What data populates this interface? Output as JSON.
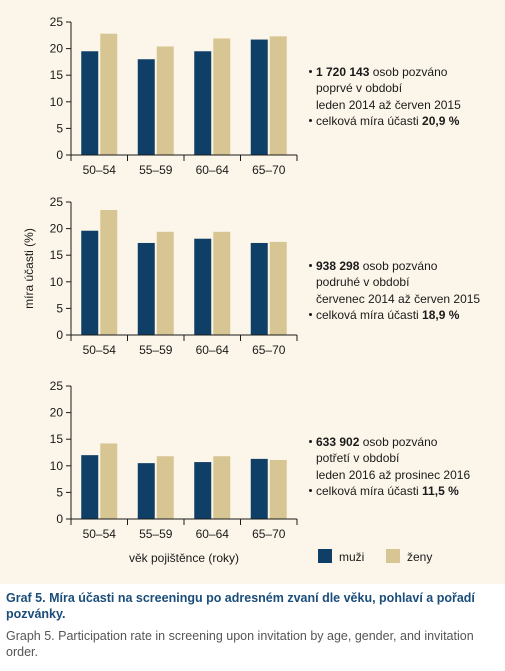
{
  "chart_data": {
    "type": "bar",
    "categories": [
      "50–54",
      "55–59",
      "60–64",
      "65–70"
    ],
    "ylabel": "míra účasti (%)",
    "xlabel": "věk pojištěnce (roky)",
    "ylim": [
      0,
      25
    ],
    "yticks": [
      0,
      5,
      10,
      15,
      20,
      25
    ],
    "grid": false,
    "legend": [
      {
        "name": "muži",
        "color": "#0f3f66"
      },
      {
        "name": "ženy",
        "color": "#d8c594"
      }
    ],
    "panels": [
      {
        "series": [
          {
            "name": "muži",
            "values": [
              19.5,
              18.0,
              19.5,
              21.7
            ]
          },
          {
            "name": "ženy",
            "values": [
              22.8,
              20.4,
              21.9,
              22.3
            ]
          }
        ]
      },
      {
        "series": [
          {
            "name": "muži",
            "values": [
              19.6,
              17.3,
              18.1,
              17.3
            ]
          },
          {
            "name": "ženy",
            "values": [
              23.5,
              19.4,
              19.4,
              17.5
            ]
          }
        ]
      },
      {
        "series": [
          {
            "name": "muži",
            "values": [
              12.0,
              10.5,
              10.7,
              11.3
            ]
          },
          {
            "name": "ženy",
            "values": [
              14.2,
              11.8,
              11.8,
              11.1
            ]
          }
        ]
      }
    ]
  },
  "annotations": [
    {
      "count": "1 720 143",
      "count_rest": " osob pozváno",
      "line2": "poprvé v období",
      "line3": "leden 2014 až červen 2015",
      "rate_label": "celková míra účasti ",
      "rate": "20,9 %"
    },
    {
      "count": "938 298",
      "count_rest": " osob pozváno",
      "line2": "podruhé v období",
      "line3": "červenec 2014 až červen 2015",
      "rate_label": "celková míra účasti ",
      "rate": "18,9 %"
    },
    {
      "count": "633 902",
      "count_rest": " osob pozváno",
      "line2": "potřetí v období",
      "line3": "leden 2016 až prosinec 2016",
      "rate_label": "celková míra účasti ",
      "rate": "11,5 %"
    }
  ],
  "caption": {
    "cz": "Graf 5. Míra účasti na screeningu po adresném zvaní dle věku, pohlaví a pořadí pozvánky.",
    "en": "Graph 5. Participation rate in screening upon invitation by age, gender, and invitation order."
  }
}
